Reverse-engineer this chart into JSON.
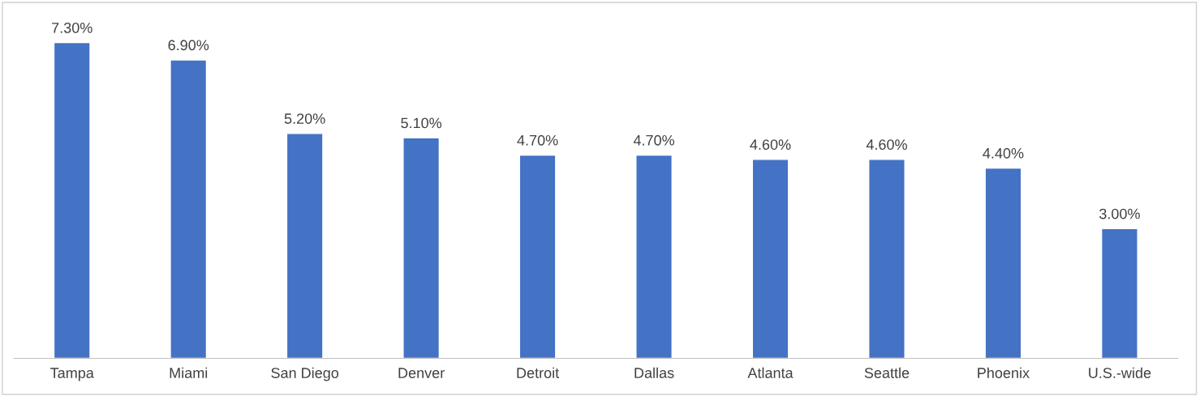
{
  "chart_data": {
    "type": "bar",
    "categories": [
      "Tampa",
      "Miami",
      "San Diego",
      "Denver",
      "Detroit",
      "Dallas",
      "Atlanta",
      "Seattle",
      "Phoenix",
      "U.S.-wide"
    ],
    "values": [
      7.3,
      6.9,
      5.2,
      5.1,
      4.7,
      4.7,
      4.6,
      4.6,
      4.4,
      3.0
    ],
    "value_labels": [
      "7.30%",
      "6.90%",
      "5.20%",
      "5.10%",
      "4.70%",
      "4.70%",
      "4.60%",
      "4.60%",
      "4.40%",
      "3.00%"
    ],
    "color": "#4472c4",
    "grid": false,
    "legend": false
  }
}
